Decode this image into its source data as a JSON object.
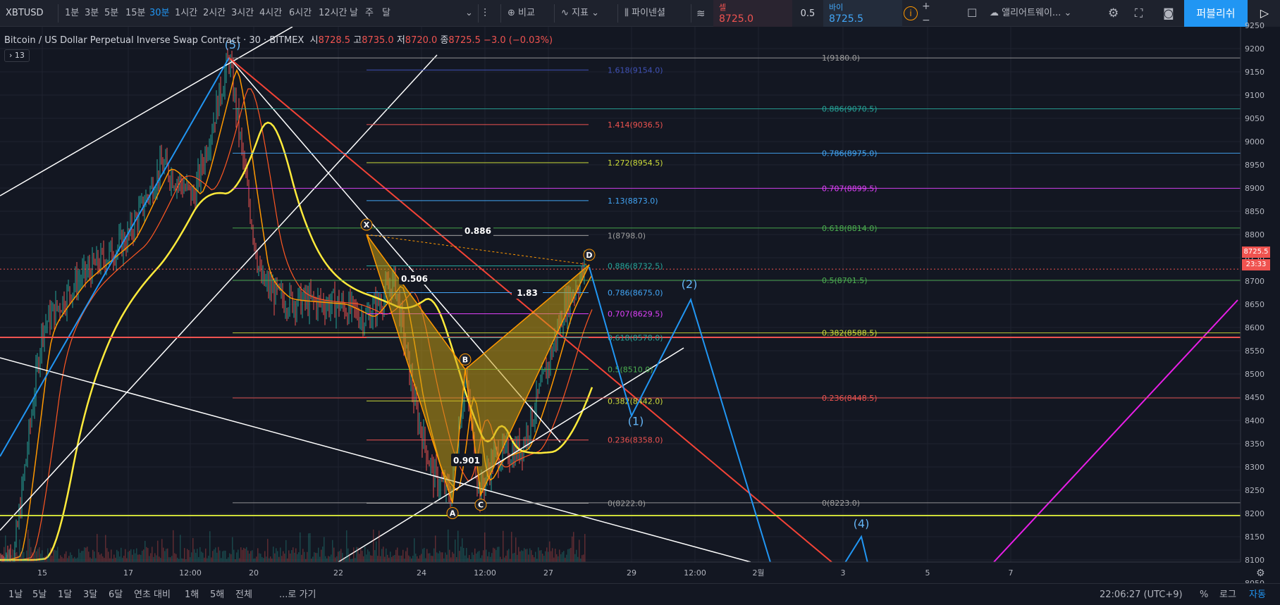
{
  "toolbar": {
    "symbol": "XBTUSD",
    "intervals": [
      "1분",
      "3분",
      "5분",
      "15분",
      "30분",
      "1시간",
      "2시간",
      "3시간",
      "4시간",
      "6시간",
      "12시간",
      "날",
      "주",
      "달"
    ],
    "active_interval": "30분",
    "compare_label": "비교",
    "indicators_label": "지표",
    "pine_label": "파이넨셜",
    "alert_label": "앨리어트웨이...",
    "publish_label": "퍼블리쉬",
    "sell_label": "셀",
    "sell_price": "8725.0",
    "buy_label": "바이",
    "buy_price": "8725.5",
    "spread": "0.5"
  },
  "legend": {
    "title": "Bitcoin / US Dollar Perpetual Inverse Swap Contract",
    "interval": "30",
    "exchange": "BITMEX",
    "open_label": "시",
    "open": "8728.5",
    "high_label": "고",
    "high": "8735.0",
    "low_label": "저",
    "low": "8720.0",
    "close_label": "종",
    "close": "8725.5",
    "change": "−3.0 (−0.03%)",
    "indicator_count": "13"
  },
  "price_tag": {
    "price": "8725.5",
    "countdown": "23:33"
  },
  "chart_data": {
    "type": "line",
    "ylim": [
      8000,
      9250
    ],
    "y_ticks": [
      9250,
      9200,
      9150,
      9100,
      9050,
      9000,
      8950,
      8900,
      8850,
      8800,
      8750,
      8700,
      8650,
      8600,
      8550,
      8500,
      8450,
      8400,
      8350,
      8300,
      8250,
      8200,
      8150,
      8100,
      8050
    ],
    "x_ticks": [
      "15",
      "17",
      "12:00",
      "20",
      "22",
      "24",
      "12:00",
      "27",
      "29",
      "12:00",
      "2월",
      "3",
      "5",
      "7"
    ],
    "current_price": 8725.5,
    "harmonic_pattern": {
      "points": [
        {
          "label": "X",
          "price": 8800
        },
        {
          "label": "A",
          "price": 8222
        },
        {
          "label": "B",
          "price": 8510
        },
        {
          "label": "C",
          "price": 8240
        },
        {
          "label": "D",
          "price": 8735
        }
      ],
      "ratios": [
        "0.886",
        "0.506",
        "1.83",
        "0.901"
      ]
    },
    "fib_left": [
      {
        "label": "1.618(9154.0)",
        "price": 9154.0,
        "color": "#3f51b5"
      },
      {
        "label": "1.414(9036.5)",
        "price": 9036.5,
        "color": "#ef5350"
      },
      {
        "label": "1.272(8954.5)",
        "price": 8954.5,
        "color": "#cddc39"
      },
      {
        "label": "1.13(8873.0)",
        "price": 8873.0,
        "color": "#42a5f5"
      },
      {
        "label": "1(8798.0)",
        "price": 8798.0,
        "color": "#9e9e9e"
      },
      {
        "label": "0.886(8732.5)",
        "price": 8732.5,
        "color": "#26a69a"
      },
      {
        "label": "0.786(8675.0)",
        "price": 8675.0,
        "color": "#42a5f5"
      },
      {
        "label": "0.707(8629.5)",
        "price": 8629.5,
        "color": "#e040fb"
      },
      {
        "label": "0.618(8578.0)",
        "price": 8578.0,
        "color": "#26a69a"
      },
      {
        "label": "0.5(8510.0)",
        "price": 8510.0,
        "color": "#4caf50"
      },
      {
        "label": "0.382(8442.0)",
        "price": 8442.0,
        "color": "#cddc39"
      },
      {
        "label": "0.236(8358.0)",
        "price": 8358.0,
        "color": "#ef5350"
      },
      {
        "label": "0(8222.0)",
        "price": 8222.0,
        "color": "#9e9e9e"
      }
    ],
    "fib_right": [
      {
        "label": "1(9180.0)",
        "price": 9180.0,
        "color": "#9e9e9e"
      },
      {
        "label": "0.886(9070.5)",
        "price": 9070.5,
        "color": "#26a69a"
      },
      {
        "label": "0.786(8975.0)",
        "price": 8975.0,
        "color": "#42a5f5"
      },
      {
        "label": "0.707(8899.5)",
        "price": 8899.5,
        "color": "#e040fb"
      },
      {
        "label": "0.618(8814.0)",
        "price": 8814.0,
        "color": "#4caf50"
      },
      {
        "label": "0.5(8701.5)",
        "price": 8701.5,
        "color": "#4caf50"
      },
      {
        "label": "0.382(8588.5)",
        "price": 8588.5,
        "color": "#cddc39"
      },
      {
        "label": "0.236(8448.5)",
        "price": 8448.5,
        "color": "#ef5350"
      },
      {
        "label": "0(8223.0)",
        "price": 8223.0,
        "color": "#9e9e9e"
      }
    ],
    "wave_labels": [
      {
        "label": "(5)",
        "price": 9200
      },
      {
        "label": "(1)",
        "price": 8390
      },
      {
        "label": "(2)",
        "price": 8685
      },
      {
        "label": "(4)",
        "price": 8170
      }
    ],
    "projection_line": [
      8730,
      8410,
      8660,
      8000
    ]
  },
  "bottom_bar": {
    "ranges": [
      "1날",
      "5날",
      "1달",
      "3달",
      "6달",
      "연초 대비",
      "1해",
      "5해",
      "전체"
    ],
    "goto_label": "...로 가기",
    "clock": "22:06:27 (UTC+9)",
    "percent_label": "%",
    "log_label": "로그",
    "auto_label": "자동"
  }
}
